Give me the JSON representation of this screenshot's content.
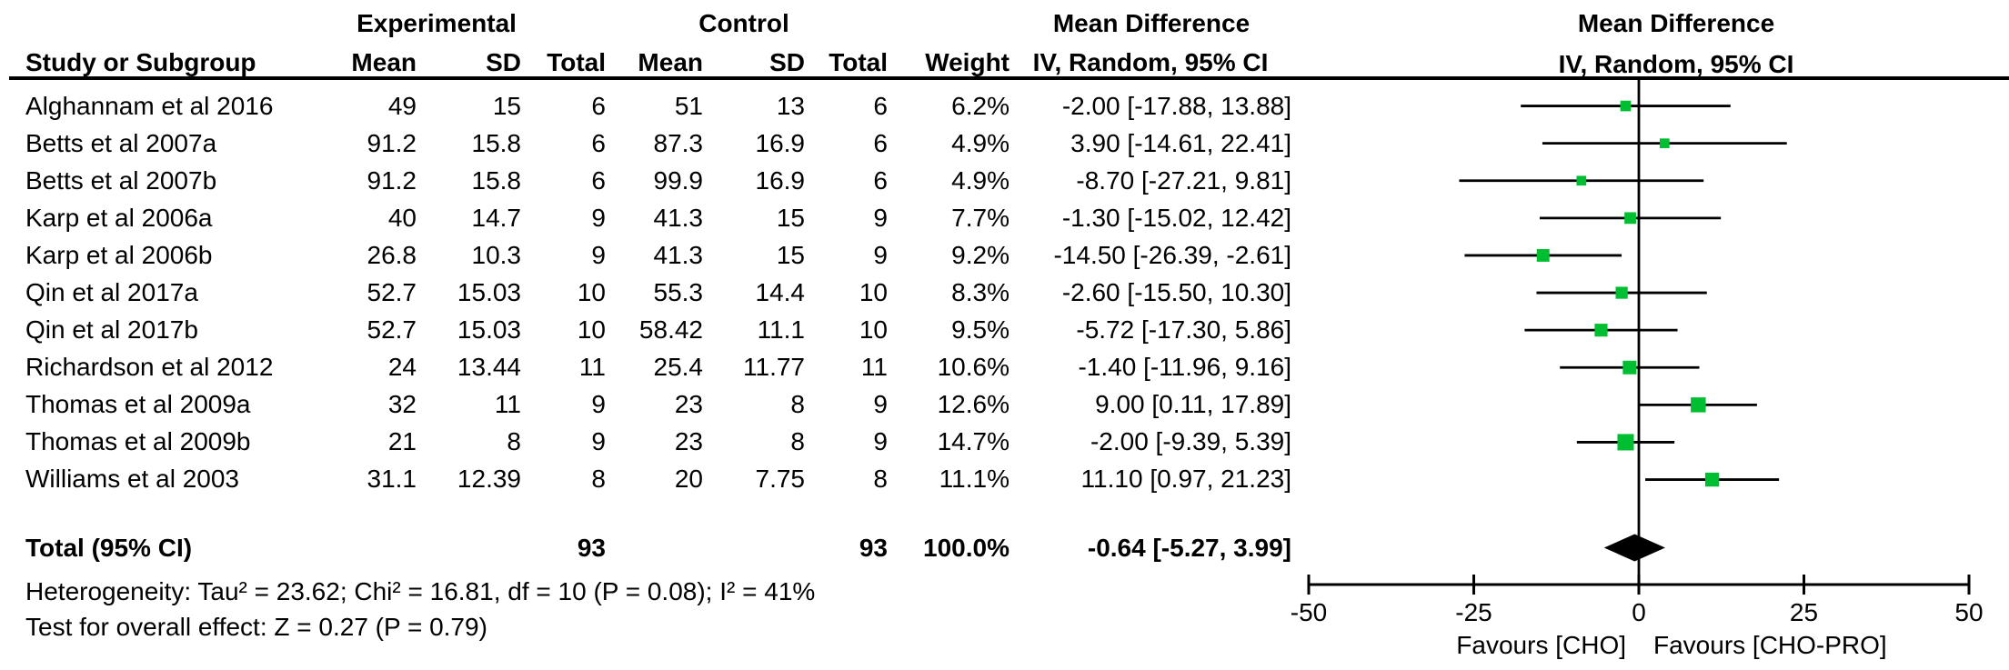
{
  "header": {
    "group": {
      "experimental": "Experimental",
      "control": "Control",
      "md_table_line1": "Mean Difference",
      "md_table_line2": "IV, Random, 95% CI",
      "md_plot_line1": "Mean Difference",
      "md_plot_line2": "IV, Random, 95% CI"
    },
    "columns": {
      "study": "Study or Subgroup",
      "exp_mean": "Mean",
      "exp_sd": "SD",
      "exp_total": "Total",
      "ctrl_mean": "Mean",
      "ctrl_sd": "SD",
      "ctrl_total": "Total",
      "weight": "Weight",
      "ci": "IV, Random, 95% CI"
    }
  },
  "table": {
    "rows": [
      {
        "study": "Alghannam et al 2016",
        "exp_mean": "49",
        "exp_sd": "15",
        "exp_total": "6",
        "ctrl_mean": "51",
        "ctrl_sd": "13",
        "ctrl_total": "6",
        "weight": "6.2%",
        "ci_text": "-2.00 [-17.88, 13.88]"
      },
      {
        "study": "Betts et al 2007a",
        "exp_mean": "91.2",
        "exp_sd": "15.8",
        "exp_total": "6",
        "ctrl_mean": "87.3",
        "ctrl_sd": "16.9",
        "ctrl_total": "6",
        "weight": "4.9%",
        "ci_text": "3.90 [-14.61, 22.41]"
      },
      {
        "study": "Betts et al 2007b",
        "exp_mean": "91.2",
        "exp_sd": "15.8",
        "exp_total": "6",
        "ctrl_mean": "99.9",
        "ctrl_sd": "16.9",
        "ctrl_total": "6",
        "weight": "4.9%",
        "ci_text": "-8.70 [-27.21, 9.81]"
      },
      {
        "study": "Karp et al 2006a",
        "exp_mean": "40",
        "exp_sd": "14.7",
        "exp_total": "9",
        "ctrl_mean": "41.3",
        "ctrl_sd": "15",
        "ctrl_total": "9",
        "weight": "7.7%",
        "ci_text": "-1.30 [-15.02, 12.42]"
      },
      {
        "study": "Karp et al 2006b",
        "exp_mean": "26.8",
        "exp_sd": "10.3",
        "exp_total": "9",
        "ctrl_mean": "41.3",
        "ctrl_sd": "15",
        "ctrl_total": "9",
        "weight": "9.2%",
        "ci_text": "-14.50 [-26.39, -2.61]"
      },
      {
        "study": "Qin et al 2017a",
        "exp_mean": "52.7",
        "exp_sd": "15.03",
        "exp_total": "10",
        "ctrl_mean": "55.3",
        "ctrl_sd": "14.4",
        "ctrl_total": "10",
        "weight": "8.3%",
        "ci_text": "-2.60 [-15.50, 10.30]"
      },
      {
        "study": "Qin et al 2017b",
        "exp_mean": "52.7",
        "exp_sd": "15.03",
        "exp_total": "10",
        "ctrl_mean": "58.42",
        "ctrl_sd": "11.1",
        "ctrl_total": "10",
        "weight": "9.5%",
        "ci_text": "-5.72 [-17.30, 5.86]"
      },
      {
        "study": "Richardson et al 2012",
        "exp_mean": "24",
        "exp_sd": "13.44",
        "exp_total": "11",
        "ctrl_mean": "25.4",
        "ctrl_sd": "11.77",
        "ctrl_total": "11",
        "weight": "10.6%",
        "ci_text": "-1.40 [-11.96, 9.16]"
      },
      {
        "study": "Thomas et al 2009a",
        "exp_mean": "32",
        "exp_sd": "11",
        "exp_total": "9",
        "ctrl_mean": "23",
        "exp2": "",
        "ctrl_sd": "8",
        "ctrl_total": "9",
        "weight": "12.6%",
        "ci_text": "9.00 [0.11, 17.89]"
      },
      {
        "study": "Thomas et al 2009b",
        "exp_mean": "21",
        "exp_sd": "8",
        "exp_total": "9",
        "ctrl_mean": "23",
        "ctrl_sd": "8",
        "ctrl_total": "9",
        "weight": "14.7%",
        "ci_text": "-2.00 [-9.39, 5.39]"
      },
      {
        "study": "Williams et al 2003",
        "exp_mean": "31.1",
        "exp_sd": "12.39",
        "exp_total": "8",
        "ctrl_mean": "20",
        "ctrl_sd": "7.75",
        "ctrl_total": "8",
        "weight": "11.1%",
        "ci_text": "11.10 [0.97, 21.23]"
      }
    ]
  },
  "total_row": {
    "label": "Total (95% CI)",
    "exp_total": "93",
    "ctrl_total": "93",
    "weight": "100.0%",
    "ci_text": "-0.64 [-5.27, 3.99]"
  },
  "footnotes": {
    "heterogeneity": "Heterogeneity: Tau² = 23.62; Chi² = 16.81, df = 10 (P = 0.08); I² = 41%",
    "overall_effect": "Test for overall effect: Z = 0.27 (P = 0.79)"
  },
  "colors": {
    "marker_green": "#00be32",
    "line_black": "#000000"
  },
  "chart_data": {
    "type": "scatter",
    "subtype": "forest-plot",
    "title": "Mean Difference IV, Random, 95% CI",
    "effect_measure": "Mean Difference",
    "model": "IV, Random, 95% CI",
    "x_axis": {
      "min": -50,
      "max": 50,
      "ticks": [
        -50,
        -25,
        0,
        25,
        50
      ],
      "zero_line": 0,
      "favours_left": "Favours [CHO]",
      "favours_right": "Favours [CHO-PRO]"
    },
    "studies": [
      {
        "name": "Alghannam et al 2016",
        "md": -2.0,
        "ci_low": -17.88,
        "ci_high": 13.88,
        "weight_pct": 6.2
      },
      {
        "name": "Betts et al 2007a",
        "md": 3.9,
        "ci_low": -14.61,
        "ci_high": 22.41,
        "weight_pct": 4.9
      },
      {
        "name": "Betts et al 2007b",
        "md": -8.7,
        "ci_low": -27.21,
        "ci_high": 9.81,
        "weight_pct": 4.9
      },
      {
        "name": "Karp et al 2006a",
        "md": -1.3,
        "ci_low": -15.02,
        "ci_high": 12.42,
        "weight_pct": 7.7
      },
      {
        "name": "Karp et al 2006b",
        "md": -14.5,
        "ci_low": -26.39,
        "ci_high": -2.61,
        "weight_pct": 9.2
      },
      {
        "name": "Qin et al 2017a",
        "md": -2.6,
        "ci_low": -15.5,
        "ci_high": 10.3,
        "weight_pct": 8.3
      },
      {
        "name": "Qin et al 2017b",
        "md": -5.72,
        "ci_low": -17.3,
        "ci_high": 5.86,
        "weight_pct": 9.5
      },
      {
        "name": "Richardson et al 2012",
        "md": -1.4,
        "ci_low": -11.96,
        "ci_high": 9.16,
        "weight_pct": 10.6
      },
      {
        "name": "Thomas et al 2009a",
        "md": 9.0,
        "ci_low": 0.11,
        "ci_high": 17.89,
        "weight_pct": 12.6
      },
      {
        "name": "Thomas et al 2009b",
        "md": -2.0,
        "ci_low": -9.39,
        "ci_high": 5.39,
        "weight_pct": 14.7
      },
      {
        "name": "Williams et al 2003",
        "md": 11.1,
        "ci_low": 0.97,
        "ci_high": 21.23,
        "weight_pct": 11.1
      }
    ],
    "total": {
      "name": "Total (95% CI)",
      "md": -0.64,
      "ci_low": -5.27,
      "ci_high": 3.99,
      "weight_pct": 100.0
    }
  }
}
